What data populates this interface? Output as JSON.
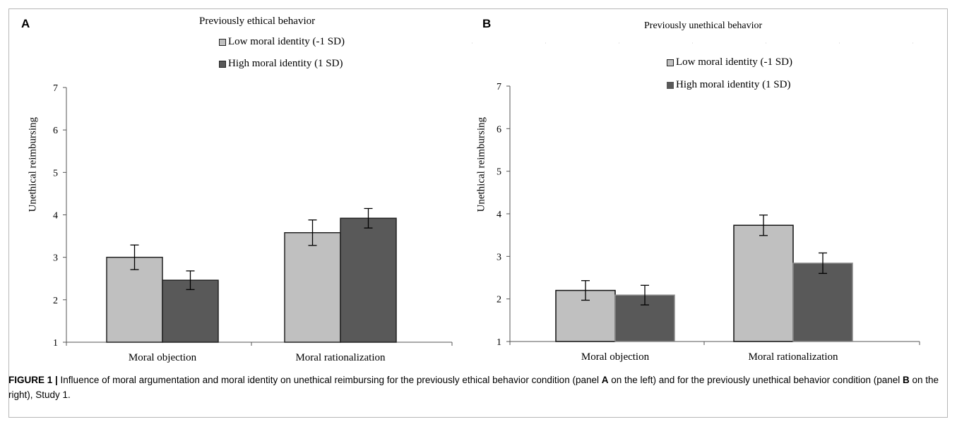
{
  "colors": {
    "low": "#c0c0c0",
    "high": "#595959",
    "frame": "#b7b7b7"
  },
  "caption": {
    "label": "FIGURE 1 |",
    "part1": " Influence of moral argumentation and moral identity on unethical reimbursing for the previously ethical behavior condition (panel ",
    "letter_a": "A",
    "part2": " on the left) and for the previously unethical behavior condition (panel ",
    "letter_b": "B",
    "part3": " on the right), Study 1."
  },
  "chart_data": [
    {
      "panel": "A",
      "type": "bar",
      "title": "Previously ethical behavior",
      "ylabel": "Unethical reimbursing",
      "xlabel": "",
      "ylim": [
        1,
        7
      ],
      "yticks": [
        "1",
        "2",
        "3",
        "4",
        "5",
        "6",
        "7"
      ],
      "categories": [
        "Moral objection",
        "Moral rationalization"
      ],
      "series": [
        {
          "name": "Low moral identity (-1 SD)",
          "values": [
            3.0,
            3.58
          ],
          "errors": [
            0.29,
            0.3
          ]
        },
        {
          "name": "High moral identity (1 SD)",
          "values": [
            2.46,
            3.92
          ],
          "errors": [
            0.22,
            0.23
          ]
        }
      ],
      "legend": "top-center",
      "grid": false
    },
    {
      "panel": "B",
      "type": "bar",
      "title": "Previously unethical behavior",
      "ylabel": "Unethical reimbursing",
      "xlabel": "",
      "ylim": [
        1,
        7
      ],
      "yticks": [
        "1",
        "2",
        "3",
        "4",
        "5",
        "6",
        "7"
      ],
      "categories": [
        "Moral objection",
        "Moral rationalization"
      ],
      "series": [
        {
          "name": "Low moral identity (-1 SD)",
          "values": [
            2.2,
            3.73
          ],
          "errors": [
            0.23,
            0.24
          ]
        },
        {
          "name": "High moral identity (1 SD)",
          "values": [
            2.09,
            2.84
          ],
          "errors": [
            0.23,
            0.24
          ]
        }
      ],
      "legend": "top-center",
      "grid": false
    }
  ]
}
